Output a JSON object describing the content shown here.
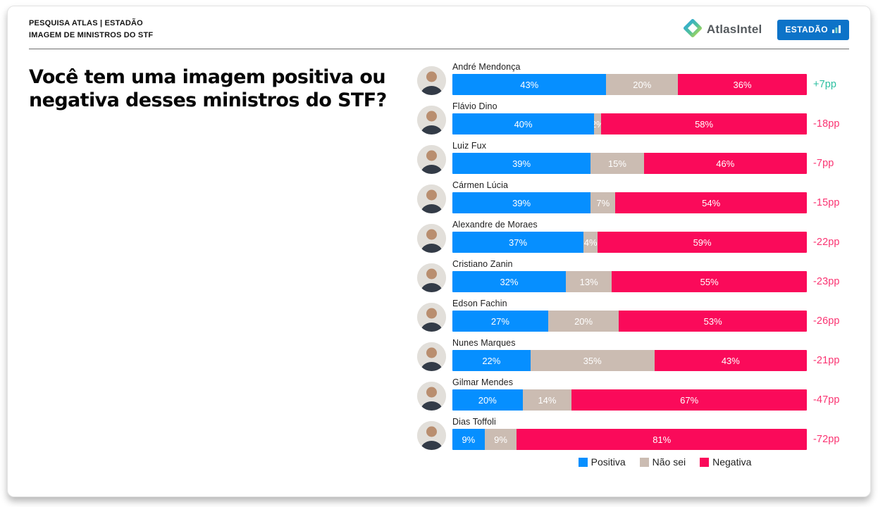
{
  "header": {
    "kicker_line1": "PESQUISA ATLAS | ESTADÃO",
    "kicker_line2": "IMAGEM DE MINISTROS DO STF",
    "atlas_logo_text": "AtlasIntel",
    "estadao_logo_text": "ESTADÃO"
  },
  "question": "Você tem uma imagem positiva ou negativa desses ministros do STF?",
  "colors": {
    "positiva": "#068fff",
    "nao_sei": "#cbbcb2",
    "negativa": "#fa0a5a",
    "delta_positive": "#2abfa0",
    "delta_negative": "#fa3472",
    "estadao_blue": "#0d73c8"
  },
  "legend": [
    {
      "label": "Positiva",
      "color": "#068fff"
    },
    {
      "label": "Não sei",
      "color": "#cbbcb2"
    },
    {
      "label": "Negativa",
      "color": "#fa0a5a"
    }
  ],
  "chart_data": {
    "type": "bar",
    "orientation": "horizontal",
    "stacked": true,
    "unit": "%",
    "title": "Você tem uma imagem positiva ou negativa desses ministros do STF?",
    "series": [
      "Positiva",
      "Não sei",
      "Negativa"
    ],
    "xlim": [
      0,
      100
    ],
    "legend_position": "bottom",
    "rows": [
      {
        "name": "André Mendonça",
        "values": [
          43,
          20,
          36
        ],
        "delta": "+7pp"
      },
      {
        "name": "Flávio Dino",
        "values": [
          40,
          2,
          58
        ],
        "delta": "-18pp"
      },
      {
        "name": "Luiz Fux",
        "values": [
          39,
          15,
          46
        ],
        "delta": "-7pp"
      },
      {
        "name": "Cármen Lúcia",
        "values": [
          39,
          7,
          54
        ],
        "delta": "-15pp"
      },
      {
        "name": "Alexandre de Moraes",
        "values": [
          37,
          4,
          59
        ],
        "delta": "-22pp"
      },
      {
        "name": "Cristiano Zanin",
        "values": [
          32,
          13,
          55
        ],
        "delta": "-23pp"
      },
      {
        "name": "Edson Fachin",
        "values": [
          27,
          20,
          53
        ],
        "delta": "-26pp"
      },
      {
        "name": "Nunes Marques",
        "values": [
          22,
          35,
          43
        ],
        "delta": "-21pp"
      },
      {
        "name": "Gilmar Mendes",
        "values": [
          20,
          14,
          67
        ],
        "delta": "-47pp"
      },
      {
        "name": "Dias Toffoli",
        "values": [
          9,
          9,
          81
        ],
        "delta": "-72pp"
      }
    ]
  }
}
